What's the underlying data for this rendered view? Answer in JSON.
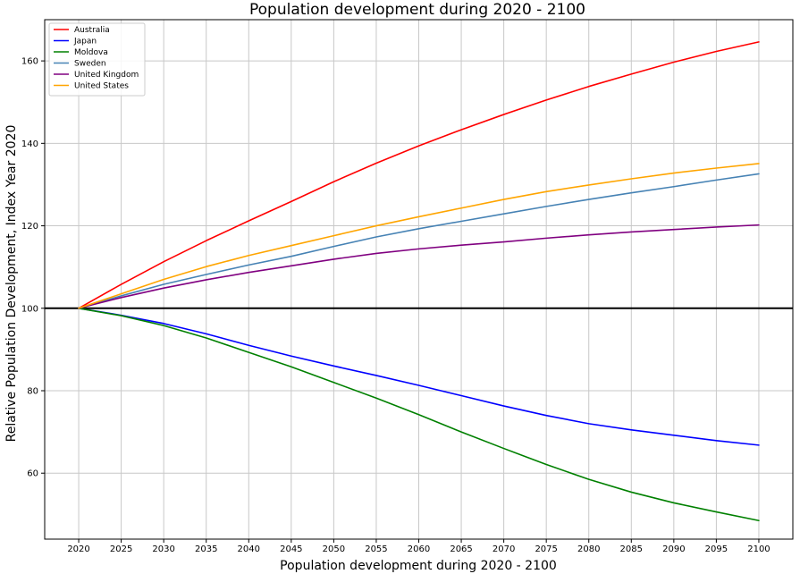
{
  "chart_data": {
    "type": "line",
    "title": "Population development during 2020 - 2100",
    "xlabel": "Population development during 2020 - 2100",
    "ylabel": "Relative Population Development, Index Year 2020",
    "x": [
      2020,
      2025,
      2030,
      2035,
      2040,
      2045,
      2050,
      2055,
      2060,
      2065,
      2070,
      2075,
      2080,
      2085,
      2090,
      2095,
      2100
    ],
    "xticks": [
      2020,
      2025,
      2030,
      2035,
      2040,
      2045,
      2050,
      2055,
      2060,
      2065,
      2070,
      2075,
      2080,
      2085,
      2090,
      2095,
      2100
    ],
    "yticks": [
      60,
      80,
      100,
      120,
      140,
      160
    ],
    "xlim": [
      2016,
      2104
    ],
    "ylim": [
      44,
      170
    ],
    "grid": true,
    "legend_position": "top-left",
    "reference_line": {
      "y": 100,
      "color": "#000000"
    },
    "series": [
      {
        "name": "Australia",
        "color": "#ff0000",
        "values": [
          100,
          105.8,
          111.3,
          116.4,
          121.2,
          125.9,
          130.7,
          135.2,
          139.4,
          143.3,
          147.0,
          150.5,
          153.8,
          156.8,
          159.7,
          162.3,
          164.6
        ]
      },
      {
        "name": "Japan",
        "color": "#0000ff",
        "values": [
          100,
          98.3,
          96.3,
          93.8,
          91.0,
          88.4,
          86.0,
          83.7,
          81.3,
          78.8,
          76.3,
          74.0,
          72.0,
          70.5,
          69.2,
          67.9,
          66.8
        ]
      },
      {
        "name": "Moldova",
        "color": "#008000",
        "values": [
          100,
          98.2,
          95.8,
          92.8,
          89.3,
          85.8,
          82.0,
          78.2,
          74.2,
          70.0,
          66.0,
          62.1,
          58.5,
          55.4,
          52.8,
          50.6,
          48.5
        ]
      },
      {
        "name": "Sweden",
        "color": "#4682b4",
        "values": [
          100,
          103.0,
          105.8,
          108.2,
          110.5,
          112.6,
          115.0,
          117.3,
          119.3,
          121.1,
          122.9,
          124.7,
          126.4,
          128.0,
          129.5,
          131.1,
          132.6
        ]
      },
      {
        "name": "United Kingdom",
        "color": "#800080",
        "values": [
          100,
          102.6,
          104.9,
          106.9,
          108.7,
          110.3,
          111.9,
          113.3,
          114.4,
          115.3,
          116.1,
          117.0,
          117.8,
          118.5,
          119.1,
          119.7,
          120.2
        ]
      },
      {
        "name": "United States",
        "color": "#ffa500",
        "values": [
          100,
          103.5,
          107.0,
          110.1,
          112.8,
          115.2,
          117.6,
          120.0,
          122.2,
          124.3,
          126.4,
          128.3,
          129.9,
          131.4,
          132.8,
          134.0,
          135.1
        ]
      }
    ]
  }
}
